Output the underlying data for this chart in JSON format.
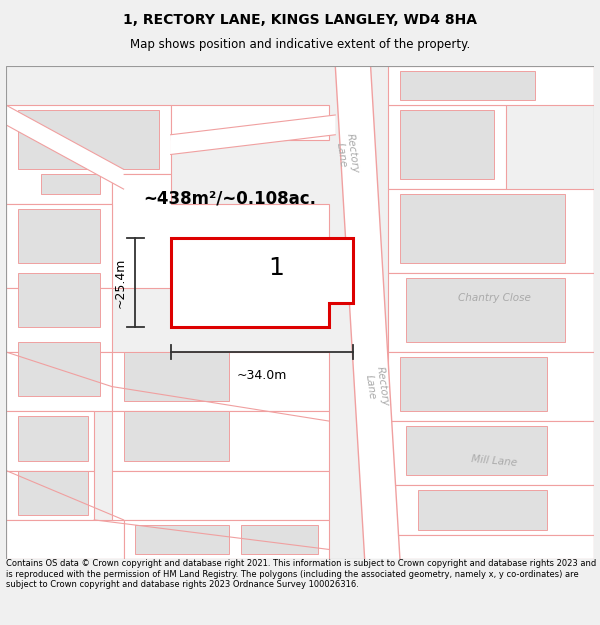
{
  "title_line1": "1, RECTORY LANE, KINGS LANGLEY, WD4 8HA",
  "title_line2": "Map shows position and indicative extent of the property.",
  "footer_text": "Contains OS data © Crown copyright and database right 2021. This information is subject to Crown copyright and database rights 2023 and is reproduced with the permission of HM Land Registry. The polygons (including the associated geometry, namely x, y co-ordinates) are subject to Crown copyright and database rights 2023 Ordnance Survey 100026316.",
  "area_label": "~438m²/~0.108ac.",
  "plot_number": "1",
  "dim_width": "~34.0m",
  "dim_height": "~25.4m",
  "bg_color": "#f0f0f0",
  "map_bg": "#ffffff",
  "plot_edge_color": "#dd0000",
  "parcel_edge": "#f0a0a0",
  "building_fill": "#e0e0e0",
  "building_edge": "#f0a0a0",
  "road_label_color": "#aaaaaa",
  "dim_color": "#333333"
}
